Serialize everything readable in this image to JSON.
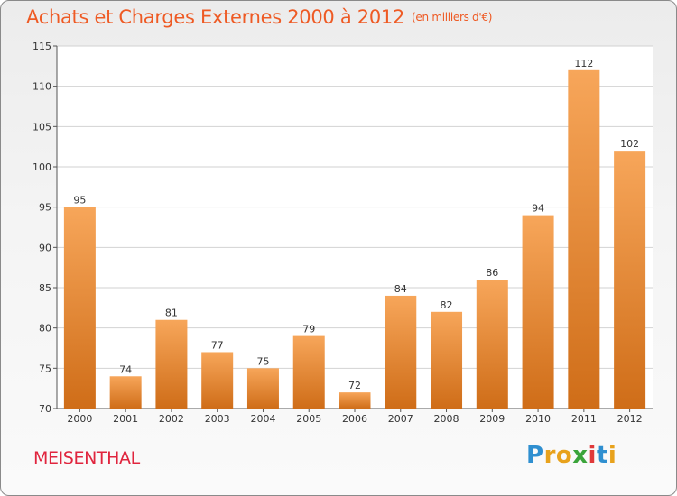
{
  "header": {
    "title": "Achats et Charges Externes 2000 à 2012",
    "unit": "(en milliers d'€)"
  },
  "footer": {
    "city": "MEISENTHAL",
    "logo_text": "Proxiti"
  },
  "colors": {
    "title": "#ee5a24",
    "city": "#e0253e",
    "bar_top": "#f7a65a",
    "bar_bottom": "#cf6d18",
    "grid": "#d2d2d2",
    "axis": "#555555"
  },
  "chart_data": {
    "type": "bar",
    "title": "Achats et Charges Externes 2000 à 2012",
    "subtitle": "(en milliers d'€)",
    "categories": [
      "2000",
      "2001",
      "2002",
      "2003",
      "2004",
      "2005",
      "2006",
      "2007",
      "2008",
      "2009",
      "2010",
      "2011",
      "2012"
    ],
    "values": [
      95,
      74,
      81,
      77,
      75,
      79,
      72,
      84,
      82,
      86,
      94,
      112,
      102
    ],
    "ylim": [
      70,
      115
    ],
    "yticks": [
      70,
      75,
      80,
      85,
      90,
      95,
      100,
      105,
      110,
      115
    ],
    "grid": true,
    "data_labels": true,
    "xlabel": "",
    "ylabel": ""
  }
}
